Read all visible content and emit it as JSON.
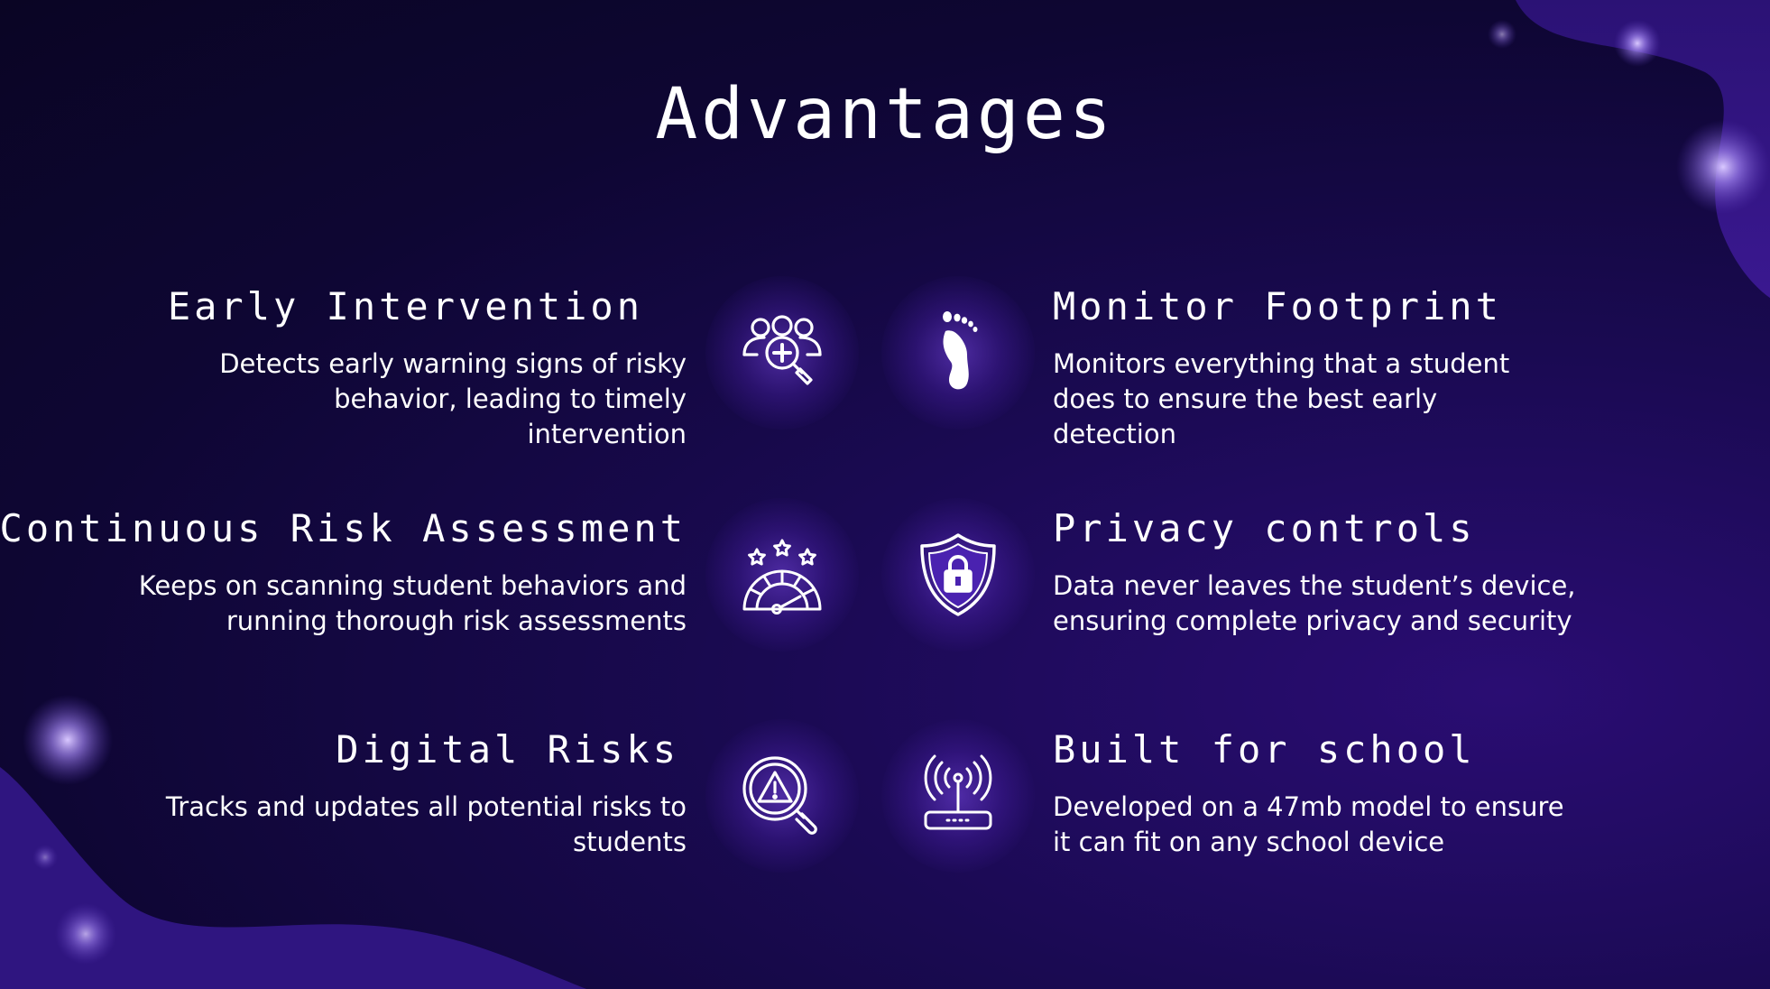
{
  "title": "Advantages",
  "accent_color": "#5b2fc9",
  "background_color": "#0e0633",
  "features": {
    "early_intervention": {
      "heading": "Early Intervention",
      "text": "Detects early warning signs of risky behavior, leading to timely intervention",
      "icon": "people-search-icon"
    },
    "continuous_risk": {
      "heading": "Continuous Risk Assessment",
      "text": "Keeps on scanning student behaviors and running thorough risk assessments",
      "icon": "rating-gauge-icon"
    },
    "digital_risks": {
      "heading": "Digital Risks",
      "text": "Tracks and updates all potential risks to students",
      "icon": "warning-search-icon"
    },
    "monitor_footprint": {
      "heading": "Monitor Footprint",
      "text": "Monitors everything that a student does to ensure the best early detection",
      "icon": "footprint-icon"
    },
    "privacy_controls": {
      "heading": "Privacy controls",
      "text": "Data never leaves the student’s device, ensuring complete privacy and security",
      "icon": "shield-lock-icon"
    },
    "built_for_school": {
      "heading": "Built for school",
      "text": "Developed on a 47mb model to ensure it can fit on any school device",
      "icon": "router-icon"
    }
  }
}
